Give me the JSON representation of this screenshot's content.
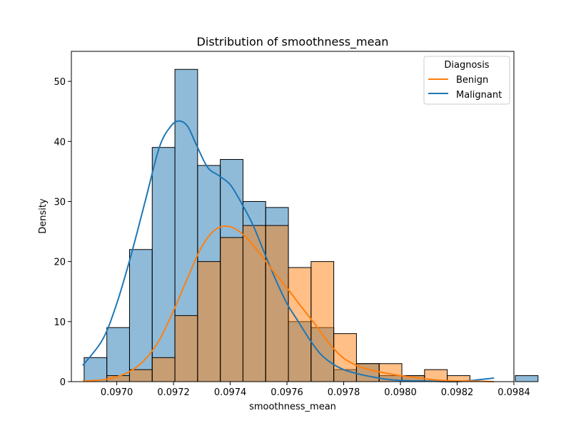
{
  "chart_data": {
    "type": "histogram",
    "title": "Distribution of smoothness_mean",
    "xlabel": "smoothness_mean",
    "ylabel": "Density",
    "xlim": [
      0.09684,
      0.0984
    ],
    "ylim": [
      0,
      55
    ],
    "x_ticks": [
      0.097,
      0.0972,
      0.0974,
      0.0976,
      0.0978,
      0.098,
      0.0982,
      0.0984
    ],
    "x_tick_labels": [
      "0.0970",
      "0.0972",
      "0.0974",
      "0.0976",
      "0.0978",
      "0.0980",
      "0.0982",
      "0.0984"
    ],
    "y_ticks": [
      0,
      10,
      20,
      30,
      40,
      50
    ],
    "y_tick_labels": [
      "0",
      "10",
      "20",
      "30",
      "40",
      "50"
    ],
    "bin_start": 0.096885,
    "bin_width": 8e-05,
    "legend": {
      "title": "Diagnosis",
      "position": "upper right"
    },
    "series": [
      {
        "name": "Malignant",
        "color": "#1f77b4",
        "counts": [
          4,
          9,
          22,
          39,
          52,
          36,
          37,
          30,
          29,
          10,
          9,
          2,
          3,
          1,
          1,
          0,
          0,
          0,
          0,
          1
        ],
        "kde_x": [
          0.09688,
          0.09695,
          0.097,
          0.09705,
          0.0971,
          0.09715,
          0.09719,
          0.09722,
          0.09725,
          0.09728,
          0.09732,
          0.09736,
          0.0974,
          0.09744,
          0.09748,
          0.09752,
          0.09756,
          0.0976,
          0.09764,
          0.09768,
          0.09772,
          0.09776,
          0.0978,
          0.09785,
          0.0979,
          0.09795,
          0.098,
          0.0981,
          0.0982,
          0.09833
        ],
        "kde_y": [
          2.7,
          7,
          13,
          21,
          30,
          39,
          42.5,
          43.4,
          42.5,
          39.5,
          35.7,
          34.3,
          32.8,
          29.7,
          26.1,
          21.5,
          17,
          13,
          10,
          7,
          4.5,
          3,
          2,
          1.3,
          0.8,
          0.4,
          0.2,
          0.1,
          0,
          0.6
        ]
      },
      {
        "name": "Benign",
        "color": "#ff7f0e",
        "counts": [
          0,
          1,
          2,
          4,
          11,
          20,
          24,
          26,
          26,
          19,
          20,
          8,
          3,
          3,
          1,
          2,
          1,
          0,
          0,
          0
        ],
        "kde_x": [
          0.09688,
          0.09695,
          0.097,
          0.09705,
          0.0971,
          0.09715,
          0.0972,
          0.09725,
          0.0973,
          0.09735,
          0.0974,
          0.09745,
          0.0975,
          0.09755,
          0.0976,
          0.09765,
          0.0977,
          0.09775,
          0.0978,
          0.09785,
          0.0979,
          0.09795,
          0.098,
          0.09805,
          0.0981,
          0.09815,
          0.0982,
          0.09825,
          0.09833
        ],
        "kde_y": [
          0.1,
          0.3,
          0.8,
          1.8,
          3.7,
          6.9,
          11.8,
          17.3,
          22.5,
          25.4,
          25.8,
          24.3,
          21.6,
          18.5,
          15.6,
          12.5,
          9.5,
          6.3,
          3.9,
          2.6,
          1.9,
          1.4,
          1,
          0.7,
          0.4,
          0.2,
          0.1,
          0.1,
          0
        ]
      }
    ]
  }
}
